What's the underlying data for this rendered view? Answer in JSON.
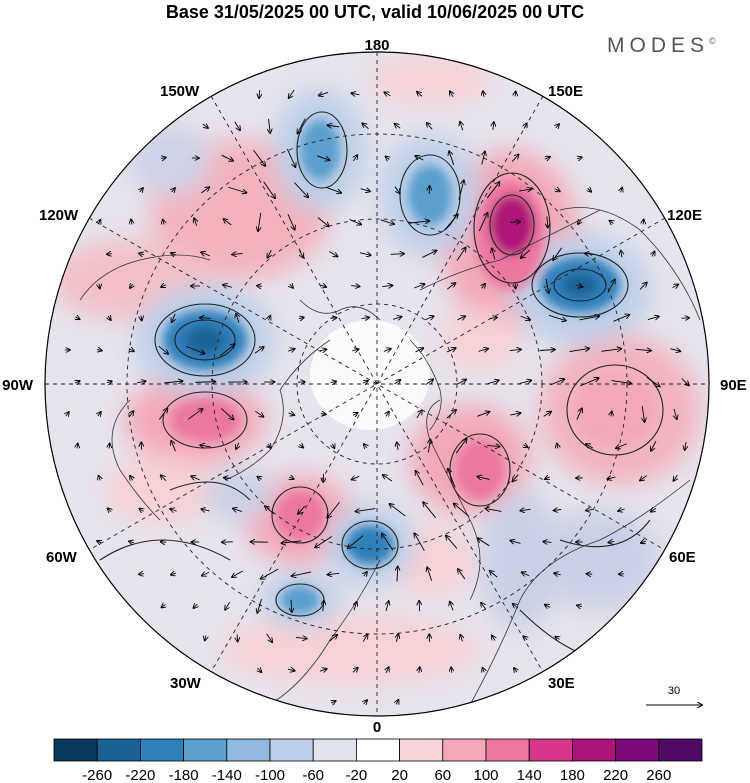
{
  "title": "Base 31/05/2025 00 UTC, valid 10/06/2025 00 UTC",
  "brand": "MODES",
  "brand_mark": "©",
  "longitude_labels": {
    "north": "180",
    "south": "0",
    "east": "90E",
    "west": "90W",
    "ne_150": "150E",
    "ne_120": "120E",
    "se_60": "60E",
    "se_30": "30E",
    "nw_150": "150W",
    "nw_120": "120W",
    "sw_60": "60W",
    "sw_30": "30W"
  },
  "vector_reference": "30",
  "colorbar": {
    "labels": [
      "-260",
      "-220",
      "-180",
      "-140",
      "-100",
      "-60",
      "-20",
      "20",
      "60",
      "100",
      "140",
      "180",
      "220",
      "260"
    ],
    "colors": [
      "#0b3b5c",
      "#1b6396",
      "#3080bb",
      "#5a9fce",
      "#8fb9dd",
      "#bccfe8",
      "#e2e3f1",
      "#ffffff",
      "#f7d2d6",
      "#f3a9b7",
      "#ec77a0",
      "#d9358b",
      "#ad1278",
      "#7e0a7a",
      "#4f0a63"
    ]
  },
  "colors": {
    "land_gray": "#dcdcdc",
    "background": "#e6e4ec"
  }
}
